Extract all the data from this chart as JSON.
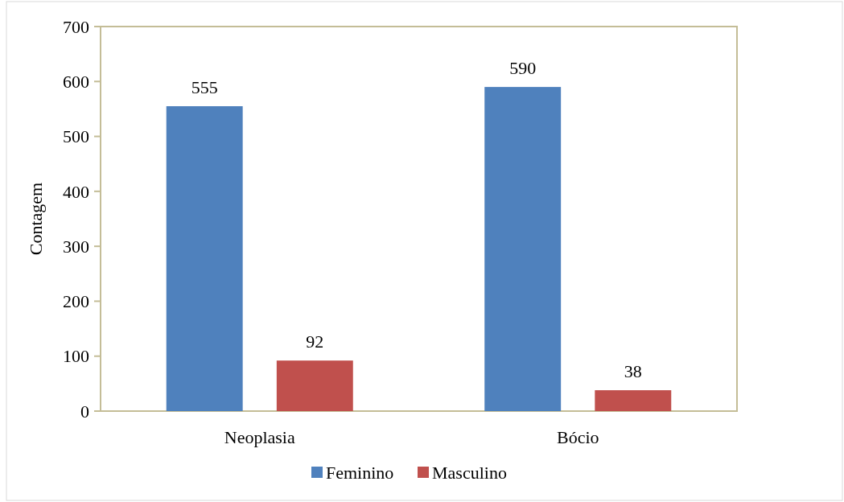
{
  "chart_data": {
    "type": "bar",
    "ylabel": "Contagem",
    "categories": [
      "Neoplasia",
      "Bócio"
    ],
    "series": [
      {
        "name": "Feminino",
        "color": "#4f81bd",
        "values": [
          555,
          590
        ]
      },
      {
        "name": "Masculino",
        "color": "#c0504d",
        "values": [
          92,
          38
        ]
      }
    ],
    "ylim": [
      0,
      700
    ],
    "yticks": [
      0,
      100,
      200,
      300,
      400,
      500,
      600,
      700
    ],
    "data_labels": true,
    "legend": "bottom",
    "grid": false
  }
}
